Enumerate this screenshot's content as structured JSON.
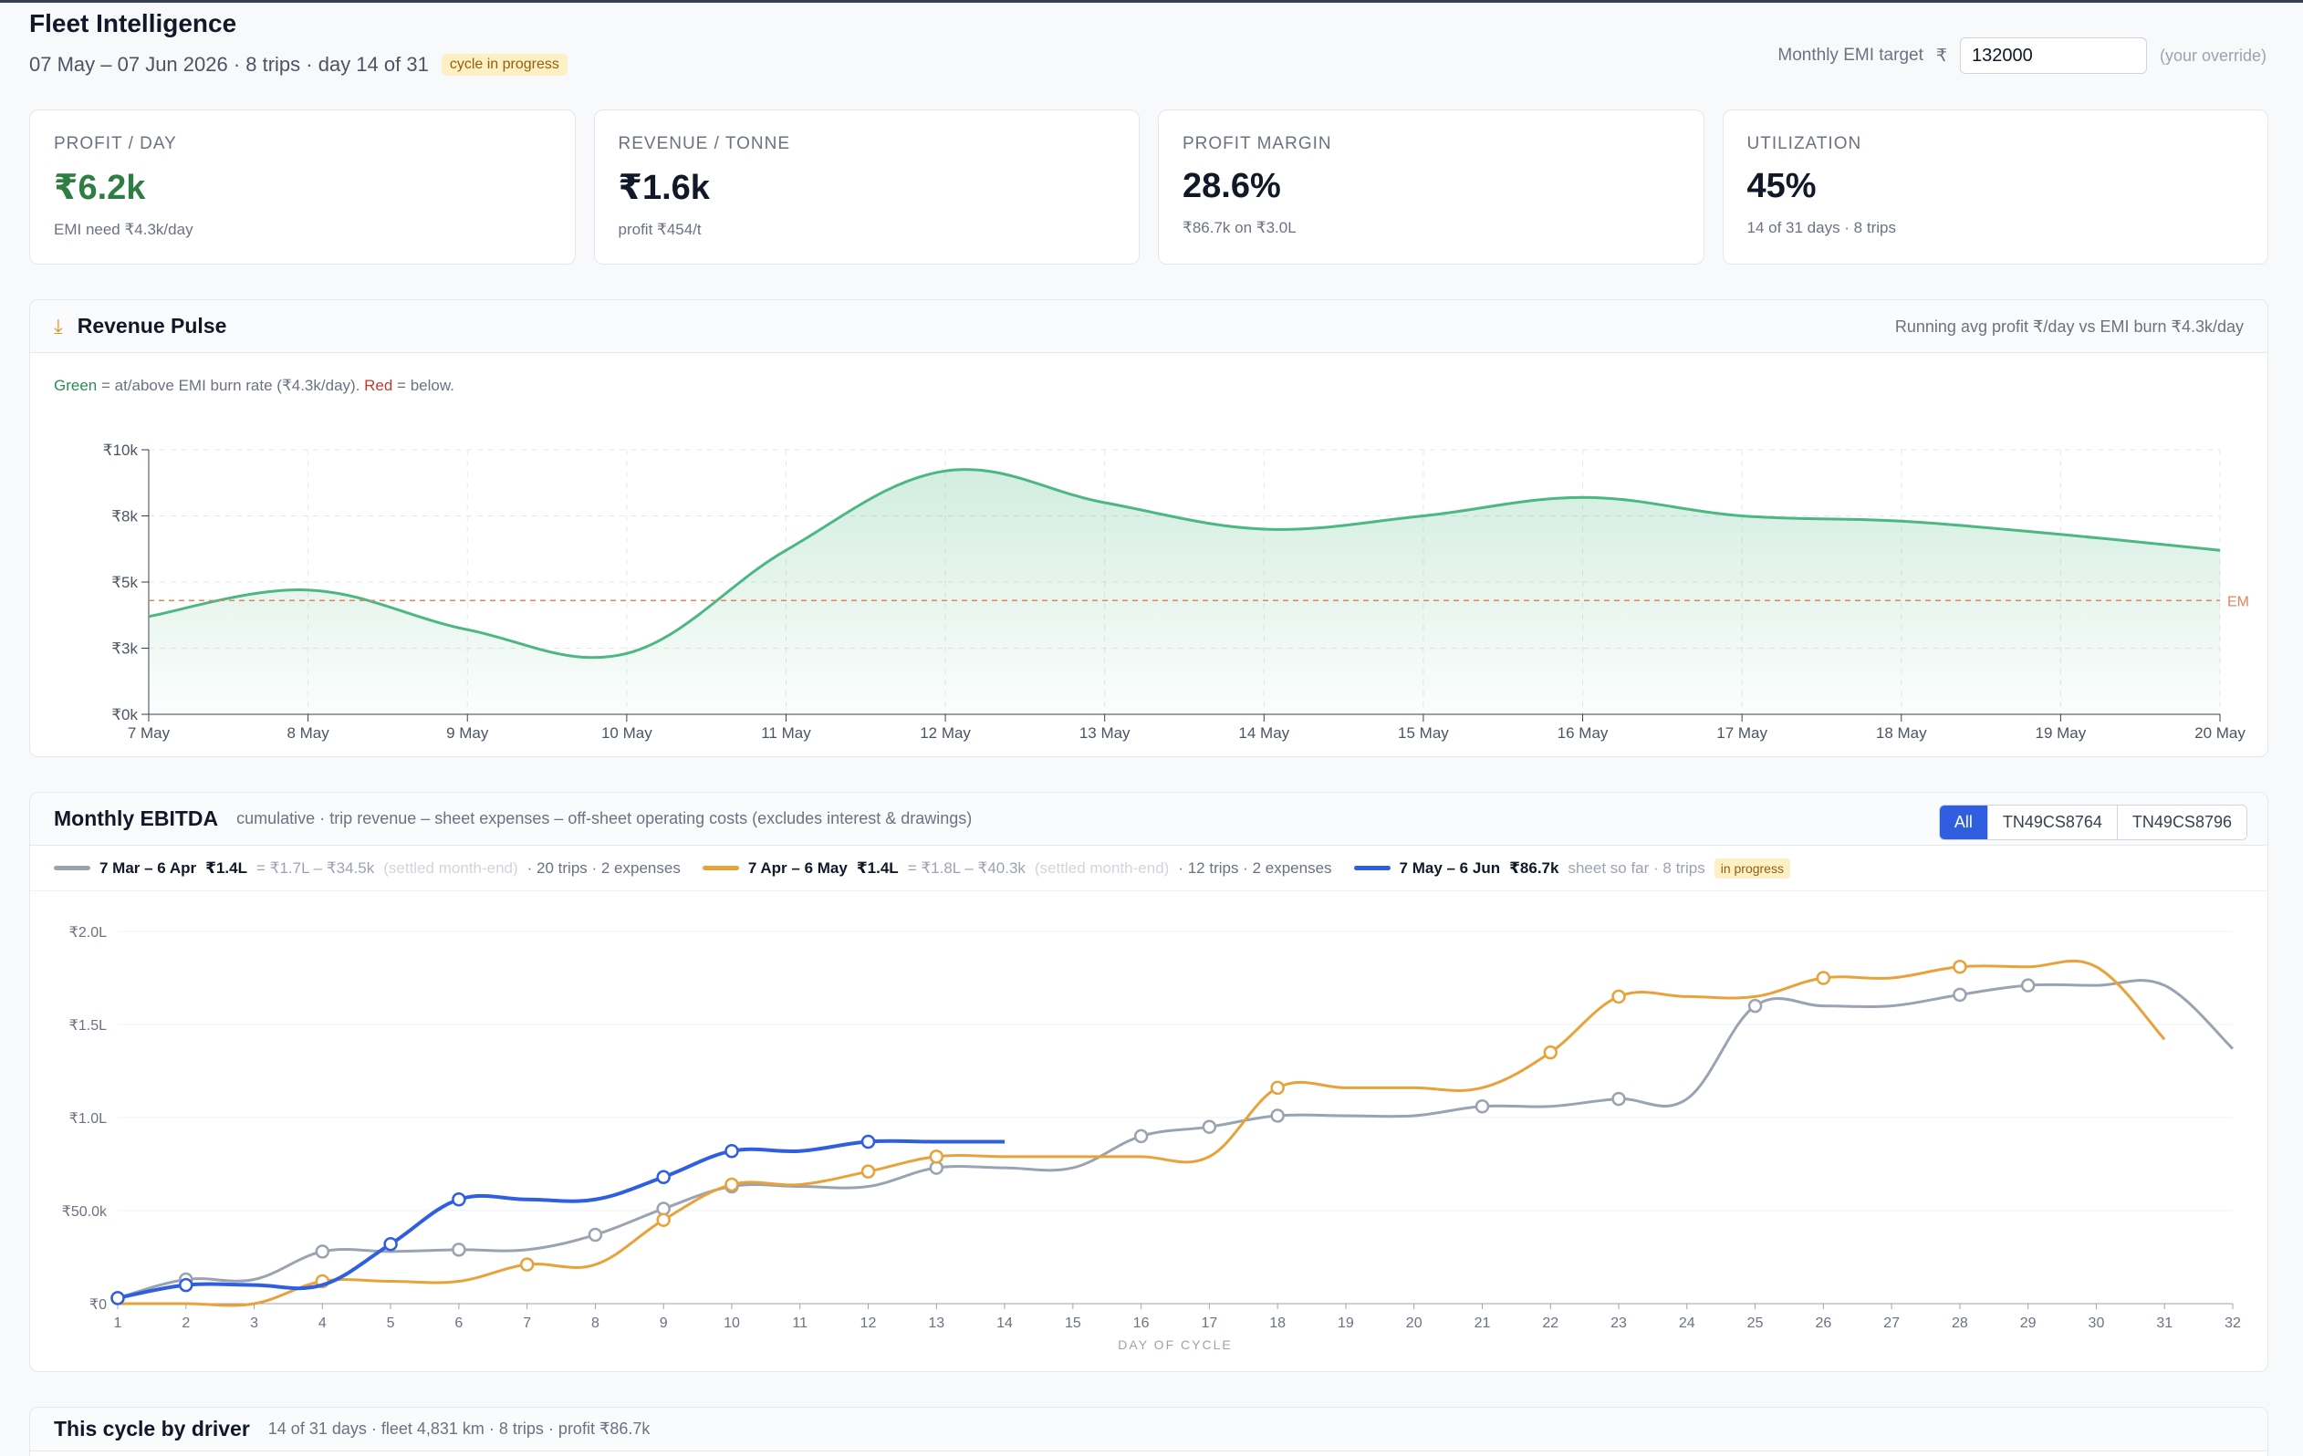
{
  "header": {
    "title": "Fleet Intelligence",
    "date_range": "07 May – 07 Jun 2026 · 8 trips · day 14 of 31",
    "status_badge": "cycle in progress",
    "emi_label": "Monthly EMI target",
    "emi_currency": "₹",
    "emi_value": "132000",
    "emi_hint": "(your override)"
  },
  "kpis": [
    {
      "label": "PROFIT / DAY",
      "value": "₹6.2k",
      "sub": "EMI need ₹4.3k/day"
    },
    {
      "label": "REVENUE / TONNE",
      "value": "₹1.6k",
      "sub": "profit ₹454/t"
    },
    {
      "label": "PROFIT MARGIN",
      "value": "28.6%",
      "sub": "₹86.7k on ₹3.0L"
    },
    {
      "label": "UTILIZATION",
      "value": "45%",
      "sub": "14 of 31 days · 8 trips"
    }
  ],
  "pulse": {
    "icon": "download-icon",
    "title": "Revenue Pulse",
    "right_note": "Running avg profit ₹/day vs EMI burn ₹4.3k/day",
    "caption_green": "Green",
    "caption_mid": " = at/above EMI burn rate (₹4.3k/day). ",
    "caption_red": "Red",
    "caption_end": " = below.",
    "emi_line_label": "EM"
  },
  "ebitda": {
    "title": "Monthly EBITDA",
    "description": "cumulative · trip revenue – sheet expenses – off-sheet operating costs (excludes interest & drawings)",
    "filters": [
      "All",
      "TN49CS8764",
      "TN49CS8796"
    ],
    "active_filter": "All",
    "legend": [
      {
        "range": "7 Mar – 6 Apr",
        "value": "₹1.4L",
        "math": "= ₹1.7L – ₹34.5k",
        "note": "(settled month-end)",
        "meta": "· 20 trips · 2 expenses",
        "color": "#9aa3b2"
      },
      {
        "range": "7 Apr – 6 May",
        "value": "₹1.4L",
        "math": "= ₹1.8L – ₹40.3k",
        "note": "(settled month-end)",
        "meta": "· 12 trips · 2 expenses",
        "color": "#e8a23a"
      },
      {
        "range": "7 May – 6 Jun",
        "value": "₹86.7k",
        "math": "",
        "note": "",
        "meta": "sheet so far · 8 trips",
        "badge": "in progress",
        "color": "#2f5fe0"
      }
    ],
    "x_axis_label": "DAY OF CYCLE"
  },
  "driver_section": {
    "title": "This cycle by driver",
    "meta": "14 of 31 days · fleet 4,831 km · 8 trips · profit ₹86.7k"
  },
  "chart_data": [
    {
      "type": "area",
      "title": "Revenue Pulse",
      "categories": [
        "7 May",
        "8 May",
        "9 May",
        "10 May",
        "11 May",
        "12 May",
        "13 May",
        "14 May",
        "15 May",
        "16 May",
        "17 May",
        "18 May",
        "19 May",
        "20 May"
      ],
      "y_tick_labels": [
        "₹0k",
        "₹3k",
        "₹5k",
        "₹8k",
        "₹10k"
      ],
      "ylim": [
        0,
        10000
      ],
      "series": [
        {
          "values": [
            3700,
            4700,
            3200,
            2300,
            6200,
            9200,
            8000,
            7000,
            7500,
            8200,
            7500,
            7300,
            6800,
            6200
          ]
        }
      ],
      "reference_line": {
        "value": 4300,
        "color": "#e8835a"
      },
      "grid": true,
      "colors": {
        "line": "#4cb782",
        "fill": "#4cb782"
      }
    },
    {
      "type": "line",
      "title": "Monthly EBITDA",
      "xlabel": "DAY OF CYCLE",
      "x": [
        1,
        2,
        3,
        4,
        5,
        6,
        7,
        8,
        9,
        10,
        11,
        12,
        13,
        14,
        15,
        16,
        17,
        18,
        19,
        20,
        21,
        22,
        23,
        24,
        25,
        26,
        27,
        28,
        29,
        30,
        31,
        32
      ],
      "y_tick_labels": [
        "₹0",
        "₹50.0k",
        "₹1.0L",
        "₹1.5L",
        "₹2.0L"
      ],
      "ylim": [
        0,
        200000
      ],
      "grid": true,
      "series": [
        {
          "name": "7 Mar – 6 Apr",
          "color": "#9aa3b2",
          "points": [
            [
              1,
              3000
            ],
            [
              2,
              13000
            ],
            [
              3,
              13000
            ],
            [
              4,
              28000
            ],
            [
              5,
              28000
            ],
            [
              6,
              29000
            ],
            [
              7,
              29000
            ],
            [
              8,
              37000
            ],
            [
              9,
              51000
            ],
            [
              10,
              63000
            ],
            [
              11,
              63000
            ],
            [
              12,
              63000
            ],
            [
              13,
              73000
            ],
            [
              14,
              73000
            ],
            [
              15,
              73000
            ],
            [
              16,
              90000
            ],
            [
              17,
              95000
            ],
            [
              18,
              101000
            ],
            [
              19,
              101000
            ],
            [
              20,
              101000
            ],
            [
              21,
              106000
            ],
            [
              22,
              106000
            ],
            [
              23,
              110000
            ],
            [
              24,
              110000
            ],
            [
              25,
              160000
            ],
            [
              26,
              160000
            ],
            [
              27,
              160000
            ],
            [
              28,
              166000
            ],
            [
              29,
              171000
            ],
            [
              30,
              171000
            ],
            [
              31,
              171000
            ],
            [
              32,
              137000
            ]
          ],
          "markers": [
            1,
            2,
            4,
            6,
            8,
            9,
            10,
            13,
            16,
            17,
            18,
            21,
            23,
            25,
            28,
            29
          ]
        },
        {
          "name": "7 Apr – 6 May",
          "color": "#e8a23a",
          "points": [
            [
              1,
              0
            ],
            [
              2,
              0
            ],
            [
              3,
              0
            ],
            [
              4,
              12000
            ],
            [
              5,
              12000
            ],
            [
              6,
              12000
            ],
            [
              7,
              21000
            ],
            [
              8,
              21000
            ],
            [
              9,
              45000
            ],
            [
              10,
              64000
            ],
            [
              11,
              64000
            ],
            [
              12,
              71000
            ],
            [
              13,
              79000
            ],
            [
              14,
              79000
            ],
            [
              15,
              79000
            ],
            [
              16,
              79000
            ],
            [
              17,
              79000
            ],
            [
              18,
              116000
            ],
            [
              19,
              116000
            ],
            [
              20,
              116000
            ],
            [
              21,
              116000
            ],
            [
              22,
              135000
            ],
            [
              23,
              165000
            ],
            [
              24,
              165000
            ],
            [
              25,
              165000
            ],
            [
              26,
              175000
            ],
            [
              27,
              175000
            ],
            [
              28,
              181000
            ],
            [
              29,
              181000
            ],
            [
              30,
              181000
            ],
            [
              31,
              142000
            ]
          ],
          "markers": [
            4,
            7,
            9,
            10,
            12,
            13,
            18,
            22,
            23,
            26,
            28
          ]
        },
        {
          "name": "7 May – 6 Jun",
          "color": "#2f5fe0",
          "points": [
            [
              1,
              3000
            ],
            [
              2,
              10000
            ],
            [
              3,
              10000
            ],
            [
              4,
              10000
            ],
            [
              5,
              32000
            ],
            [
              6,
              56000
            ],
            [
              7,
              56000
            ],
            [
              8,
              56000
            ],
            [
              9,
              68000
            ],
            [
              10,
              82000
            ],
            [
              11,
              82000
            ],
            [
              12,
              87000
            ],
            [
              13,
              87000
            ],
            [
              14,
              87000
            ]
          ],
          "markers": [
            1,
            2,
            5,
            6,
            9,
            10,
            12
          ]
        }
      ]
    }
  ]
}
